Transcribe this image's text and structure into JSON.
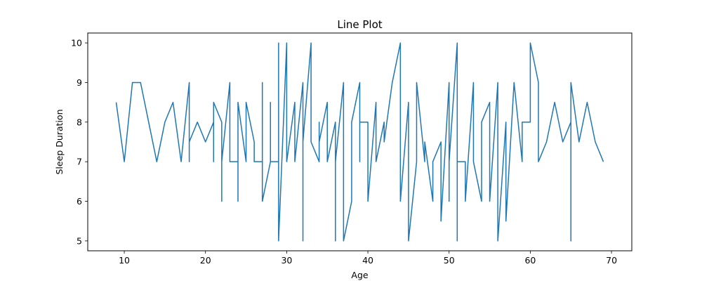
{
  "chart_data": {
    "type": "line",
    "title": "Line Plot",
    "xlabel": "Age",
    "ylabel": "Sleep Duration",
    "xlim": [
      5.5,
      72.5
    ],
    "ylim": [
      4.75,
      10.25
    ],
    "xticks": [
      10,
      20,
      30,
      40,
      50,
      60,
      70
    ],
    "yticks": [
      5,
      6,
      7,
      8,
      9,
      10
    ],
    "grid": false,
    "legend": "none",
    "line_color": "#1f77b4",
    "x": [
      9,
      10,
      11,
      12,
      13,
      14,
      15,
      16,
      17,
      18,
      18,
      18,
      19,
      20,
      21,
      21,
      21,
      22,
      22,
      22,
      23,
      23,
      24,
      24,
      24,
      25,
      25,
      26,
      26,
      27,
      27,
      27,
      28,
      28,
      28,
      29,
      29,
      29,
      30,
      30,
      31,
      31,
      31,
      32,
      32,
      32,
      33,
      33,
      34,
      34,
      34,
      35,
      35,
      36,
      36,
      36,
      37,
      37,
      38,
      38,
      39,
      39,
      39,
      40,
      40,
      41,
      41,
      42,
      42,
      43,
      44,
      44,
      45,
      45,
      46,
      46,
      47,
      47,
      48,
      48,
      49,
      49,
      50,
      50,
      50,
      51,
      51,
      51,
      52,
      52,
      53,
      53,
      54,
      54,
      55,
      55,
      55,
      56,
      56,
      57,
      57,
      58,
      59,
      59,
      60,
      60,
      61,
      61,
      62,
      63,
      64,
      65,
      65,
      65,
      66,
      67,
      68,
      69
    ],
    "y": [
      8.5,
      7,
      9,
      9,
      8,
      7,
      8,
      8.5,
      7,
      9,
      7,
      7.5,
      8,
      7.5,
      8,
      7,
      8.5,
      8,
      6,
      7,
      9,
      7,
      7,
      6,
      8.5,
      7,
      8.5,
      7.5,
      7,
      7,
      9,
      6,
      7,
      8.5,
      7,
      7,
      10,
      5,
      10,
      7,
      8.5,
      7,
      7,
      9,
      5,
      7.5,
      10,
      7.5,
      7,
      8,
      7.5,
      8.5,
      7,
      8,
      5,
      7,
      9,
      5,
      6,
      8,
      9,
      7,
      8,
      8,
      6,
      8.5,
      7,
      8,
      7.5,
      9,
      10,
      6,
      8.5,
      5,
      7,
      9,
      7,
      7.5,
      6,
      7,
      7.5,
      5.5,
      9,
      6,
      7,
      10,
      5,
      7,
      7,
      6,
      9,
      7,
      6,
      8,
      8.5,
      7,
      6,
      9,
      5,
      8,
      5.5,
      9,
      7,
      8,
      8,
      10,
      9,
      7,
      7.5,
      8.5,
      7.5,
      8,
      5,
      9,
      7.5,
      8.5,
      7.5,
      7
    ]
  }
}
